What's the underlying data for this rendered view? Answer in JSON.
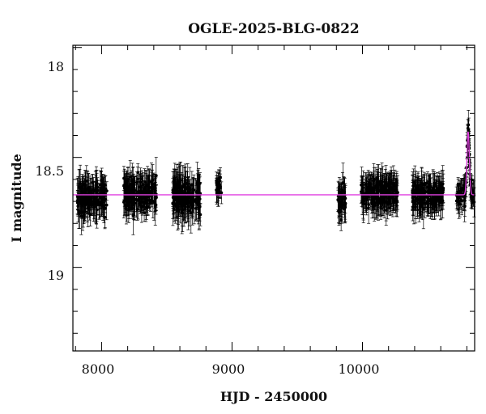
{
  "chart_data": {
    "type": "scatter",
    "title": "OGLE-2025-BLG-0822",
    "xlabel": "HJD - 2450000",
    "ylabel": "I magnitude",
    "xlim": [
      7780,
      10860
    ],
    "ylim": [
      19.38,
      17.99
    ],
    "y_inverted": true,
    "x_ticks_major": [
      8000,
      9000,
      10000
    ],
    "x_tick_labels": [
      "8000",
      "9000",
      "10000"
    ],
    "y_ticks_major": [
      18.0,
      18.5,
      19.0
    ],
    "y_tick_labels": [
      "18",
      "18.5",
      "19"
    ],
    "grid": false,
    "legend": null,
    "colors": {
      "data": "#000000",
      "model": "#e040e0",
      "axis": "#000000"
    },
    "baseline_mag": 18.67,
    "peak": {
      "hjd": 10810,
      "peak_mag": 18.38,
      "observed_brightest_mag": 18.31
    },
    "seasons": [
      {
        "start": 7810,
        "end": 8040,
        "mag_mean": 18.68,
        "mag_scatter": 0.05,
        "err_typical": 0.06
      },
      {
        "start": 8170,
        "end": 8420,
        "mag_mean": 18.66,
        "mag_scatter": 0.05,
        "err_typical": 0.06
      },
      {
        "start": 8540,
        "end": 8760,
        "mag_mean": 18.68,
        "mag_scatter": 0.05,
        "err_typical": 0.07
      },
      {
        "start": 8880,
        "end": 8920,
        "mag_mean": 18.64,
        "mag_scatter": 0.03,
        "err_typical": 0.04
      },
      {
        "start": 9810,
        "end": 9870,
        "mag_mean": 18.7,
        "mag_scatter": 0.05,
        "err_typical": 0.06
      },
      {
        "start": 9990,
        "end": 10270,
        "mag_mean": 18.66,
        "mag_scatter": 0.04,
        "err_typical": 0.06
      },
      {
        "start": 10380,
        "end": 10620,
        "mag_mean": 18.67,
        "mag_scatter": 0.04,
        "err_typical": 0.06
      },
      {
        "start": 10720,
        "end": 10860,
        "mag_mean": 18.67,
        "mag_scatter": 0.03,
        "err_typical": 0.05
      }
    ]
  }
}
